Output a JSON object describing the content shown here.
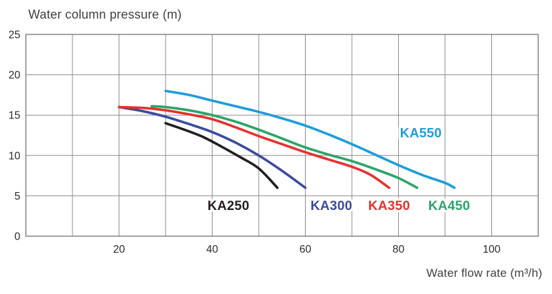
{
  "chart": {
    "title": "Water column pressure (m)",
    "x_axis_title": "Water flow rate (m³/h)"
  },
  "chart_data": {
    "type": "line",
    "title": "Water column pressure (m)",
    "xlabel": "Water flow rate (m³/h)",
    "ylabel": "Water column pressure (m)",
    "xlim": [
      0,
      110
    ],
    "ylim": [
      0,
      25
    ],
    "x_gridline_step": 10,
    "y_gridline_step": 5,
    "x_tick_labels": [
      20,
      40,
      60,
      80,
      100
    ],
    "y_tick_labels": [
      0,
      5,
      10,
      15,
      20,
      25
    ],
    "grid": true,
    "legend_position": "inline-labels",
    "colors": {
      "grid": "#8c8c8f",
      "border": "#737376",
      "tick_text": "#2b2b2d",
      "title_text": "#414042"
    },
    "series": [
      {
        "name": "KA250",
        "color": "#231f20",
        "label_pos": {
          "x": 43.5,
          "y": 3.8
        },
        "points": [
          [
            30,
            14
          ],
          [
            34,
            13.2
          ],
          [
            38,
            12.3
          ],
          [
            42,
            11.1
          ],
          [
            46,
            9.8
          ],
          [
            50,
            8.4
          ],
          [
            54,
            6
          ]
        ]
      },
      {
        "name": "KA300",
        "color": "#3c4b9e",
        "label_pos": {
          "x": 65.6,
          "y": 3.8
        },
        "points": [
          [
            20,
            16
          ],
          [
            25,
            15.5
          ],
          [
            30,
            14.8
          ],
          [
            35,
            13.9
          ],
          [
            40,
            12.9
          ],
          [
            45,
            11.6
          ],
          [
            50,
            10
          ],
          [
            55,
            8.1
          ],
          [
            60,
            6
          ]
        ]
      },
      {
        "name": "KA350",
        "color": "#e6312e",
        "label_pos": {
          "x": 78,
          "y": 3.8
        },
        "points": [
          [
            20,
            16
          ],
          [
            25,
            15.9
          ],
          [
            30,
            15.6
          ],
          [
            35,
            15.1
          ],
          [
            40,
            14.5
          ],
          [
            45,
            13.5
          ],
          [
            50,
            12.4
          ],
          [
            55,
            11.4
          ],
          [
            60,
            10.4
          ],
          [
            65,
            9.5
          ],
          [
            70,
            8.6
          ],
          [
            74,
            7.6
          ],
          [
            78,
            6
          ]
        ]
      },
      {
        "name": "KA450",
        "color": "#2ca468",
        "label_pos": {
          "x": 90.9,
          "y": 3.8
        },
        "points": [
          [
            27,
            16.1
          ],
          [
            30,
            16
          ],
          [
            35,
            15.6
          ],
          [
            40,
            15
          ],
          [
            45,
            14.2
          ],
          [
            50,
            13.2
          ],
          [
            55,
            12.1
          ],
          [
            60,
            11
          ],
          [
            65,
            10.1
          ],
          [
            70,
            9.3
          ],
          [
            75,
            8.3
          ],
          [
            80,
            7.2
          ],
          [
            84,
            6
          ]
        ]
      },
      {
        "name": "KA550",
        "color": "#1f9cd9",
        "label_pos": {
          "x": 84.8,
          "y": 12.8
        },
        "points": [
          [
            30,
            18
          ],
          [
            35,
            17.5
          ],
          [
            40,
            16.8
          ],
          [
            45,
            16.1
          ],
          [
            50,
            15.4
          ],
          [
            55,
            14.6
          ],
          [
            60,
            13.7
          ],
          [
            65,
            12.6
          ],
          [
            70,
            11.4
          ],
          [
            75,
            10.1
          ],
          [
            80,
            8.8
          ],
          [
            85,
            7.6
          ],
          [
            90,
            6.6
          ],
          [
            92,
            6
          ]
        ]
      }
    ]
  }
}
